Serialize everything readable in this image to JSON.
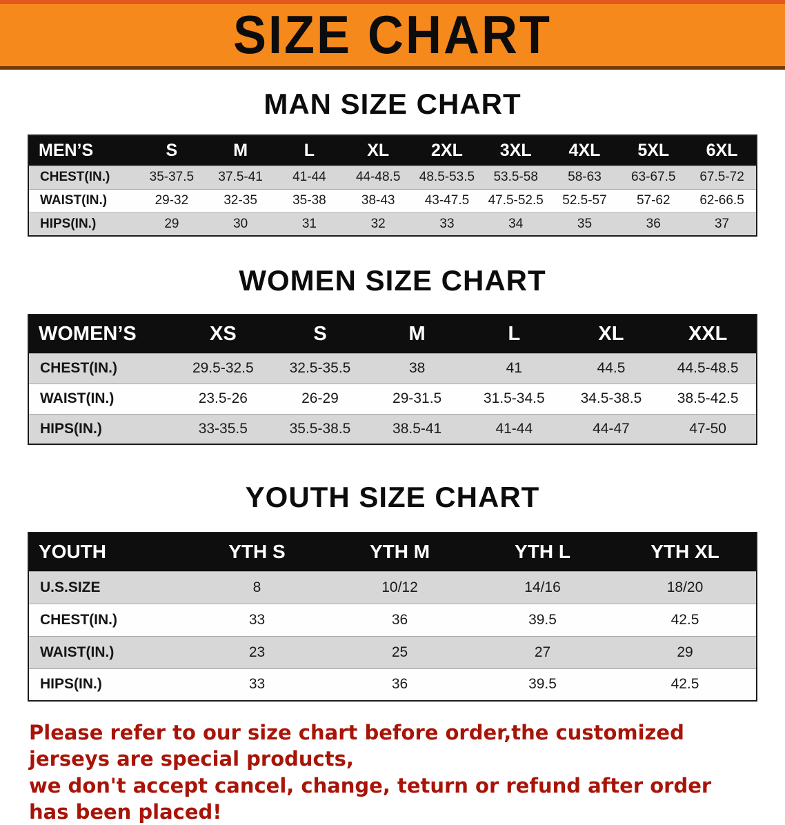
{
  "banner": {
    "title": "SIZE CHART"
  },
  "men": {
    "heading": "MAN SIZE CHART",
    "table": {
      "header": [
        "MEN’S",
        "S",
        "M",
        "L",
        "XL",
        "2XL",
        "3XL",
        "4XL",
        "5XL",
        "6XL"
      ],
      "rows": [
        [
          "CHEST(IN.)",
          "35-37.5",
          "37.5-41",
          "41-44",
          "44-48.5",
          "48.5-53.5",
          "53.5-58",
          "58-63",
          "63-67.5",
          "67.5-72"
        ],
        [
          "WAIST(IN.)",
          "29-32",
          "32-35",
          "35-38",
          "38-43",
          "43-47.5",
          "47.5-52.5",
          "52.5-57",
          "57-62",
          "62-66.5"
        ],
        [
          "HIPS(IN.)",
          "29",
          "30",
          "31",
          "32",
          "33",
          "34",
          "35",
          "36",
          "37"
        ]
      ]
    }
  },
  "women": {
    "heading": "WOMEN SIZE CHART",
    "table": {
      "header": [
        "WOMEN’S",
        "XS",
        "S",
        "M",
        "L",
        "XL",
        "XXL"
      ],
      "rows": [
        [
          "CHEST(IN.)",
          "29.5-32.5",
          "32.5-35.5",
          "38",
          "41",
          "44.5",
          "44.5-48.5"
        ],
        [
          "WAIST(IN.)",
          "23.5-26",
          "26-29",
          "29-31.5",
          "31.5-34.5",
          "34.5-38.5",
          "38.5-42.5"
        ],
        [
          "HIPS(IN.)",
          "33-35.5",
          "35.5-38.5",
          "38.5-41",
          "41-44",
          "44-47",
          "47-50"
        ]
      ]
    }
  },
  "youth": {
    "heading": "YOUTH SIZE CHART",
    "table": {
      "header": [
        "YOUTH",
        "YTH S",
        "YTH M",
        "YTH L",
        "YTH XL"
      ],
      "rows": [
        [
          "U.S.SIZE",
          "8",
          "10/12",
          "14/16",
          "18/20"
        ],
        [
          "CHEST(IN.)",
          "33",
          "36",
          "39.5",
          "42.5"
        ],
        [
          "WAIST(IN.)",
          "23",
          "25",
          "27",
          "29"
        ],
        [
          "HIPS(IN.)",
          "33",
          "36",
          "39.5",
          "42.5"
        ]
      ]
    }
  },
  "disclaimer": {
    "line1": "Please refer to our size chart before order,the customized jerseys are special products,",
    "line2": "we don't accept cancel, change, teturn or refund after order has been placed!"
  },
  "colors": {
    "banner_orange": "#f6891c",
    "table_header_black": "#0e0e0e",
    "row_stripe_gray": "#d7d7d7",
    "disclaimer_red": "#a81408"
  }
}
